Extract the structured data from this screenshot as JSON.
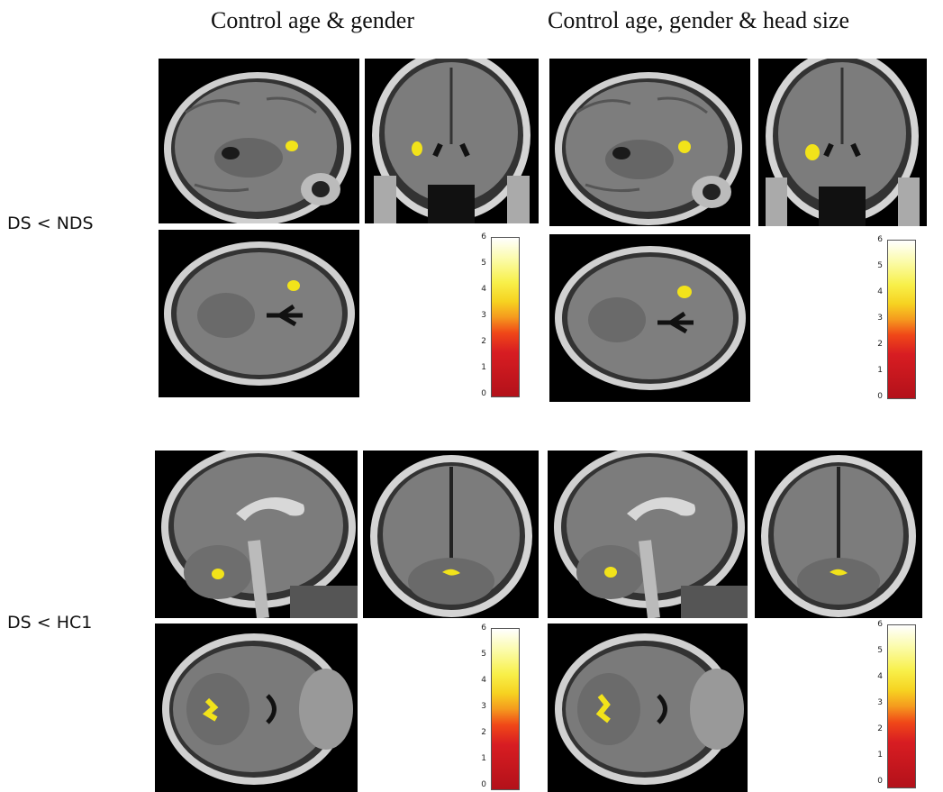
{
  "columns": [
    {
      "header": "Control age & gender"
    },
    {
      "header": "Control age, gender & head size"
    }
  ],
  "rows": [
    {
      "label": "DS < NDS"
    },
    {
      "label": "DS < HC1"
    }
  ],
  "colorbar": {
    "ticks": [
      "6",
      "5",
      "4",
      "3",
      "2",
      "1",
      "0"
    ],
    "colors": {
      "low": "#b3111a",
      "mid": "#f59a1e",
      "high": "#ffffff"
    }
  },
  "colors": {
    "background": "#000000",
    "activation": "#f2e31a",
    "skull": "#d8d8d8",
    "brain": "#7a7a7a"
  }
}
